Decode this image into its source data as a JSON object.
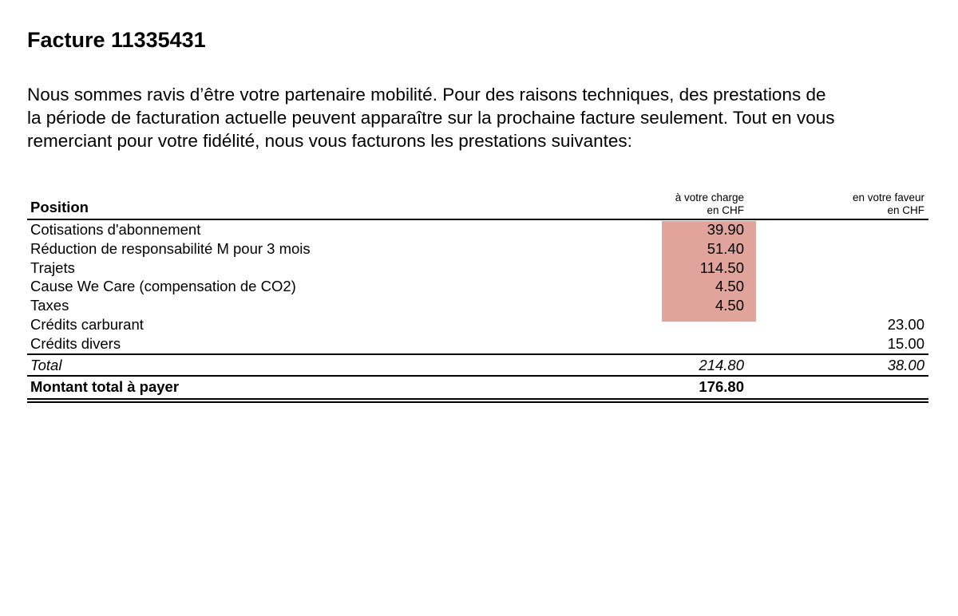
{
  "title": "Facture 11335431",
  "intro_lines": [
    "Nous sommes ravis d’être votre partenaire mobilité. Pour des raisons techniques, des prestations de",
    "la période de facturation actuelle peuvent apparaître sur la prochaine facture seulement. Tout en vous",
    "remerciant pour votre fidélité, nous vous facturons les prestations suivantes:"
  ],
  "table": {
    "header": {
      "position": "Position",
      "charge_line1": "à votre charge",
      "charge_line2": "en CHF",
      "favor_line1": "en votre faveur",
      "favor_line2": "en CHF"
    },
    "rows": [
      {
        "label": "Cotisations d'abonnement",
        "charge": "39.90",
        "favor": ""
      },
      {
        "label": "Réduction de responsabilité M pour 3 mois",
        "charge": "51.40",
        "favor": ""
      },
      {
        "label": "Trajets",
        "charge": "114.50",
        "favor": ""
      },
      {
        "label": "Cause We Care (compensation de CO2)",
        "charge": "4.50",
        "favor": ""
      },
      {
        "label": "Taxes",
        "charge": "4.50",
        "favor": ""
      },
      {
        "label": "Crédits carburant",
        "charge": "",
        "favor": "23.00"
      },
      {
        "label": "Crédits divers",
        "charge": "",
        "favor": "15.00"
      }
    ],
    "total": {
      "label": "Total",
      "charge": "214.80",
      "favor": "38.00"
    },
    "amount_due": {
      "label": "Montant total à payer",
      "value": "176.80"
    }
  },
  "colors": {
    "highlight": "#e0a49c"
  }
}
